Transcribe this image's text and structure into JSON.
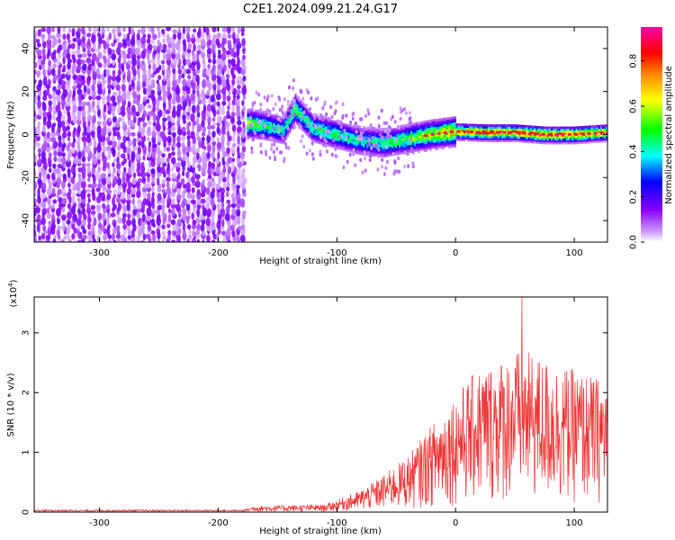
{
  "title": "C2E1.2024.099.21.24.G17",
  "chart_data": [
    {
      "type": "heatmap",
      "name": "spectrogram",
      "xlabel": "Height of straight line (km)",
      "ylabel": "Frequency (Hz)",
      "xlim": [
        -355,
        128
      ],
      "ylim": [
        -50,
        50
      ],
      "xticks": [
        -300,
        -200,
        -100,
        0,
        100
      ],
      "yticks": [
        -40,
        -20,
        0,
        20,
        40
      ],
      "colorbar": {
        "label": "Normalized spectral amplitude",
        "range": [
          0,
          0.95
        ],
        "ticks": [
          0.0,
          0.2,
          0.4,
          0.6,
          0.8
        ],
        "colors": [
          "#ffffff",
          "#8800ff",
          "#0000ff",
          "#00ffff",
          "#00ff00",
          "#ffff00",
          "#ff8800",
          "#ff0000",
          "#ff00aa"
        ]
      },
      "noise_region_x": [
        -355,
        -177
      ],
      "signal_track": [
        {
          "x": -175,
          "f": 5,
          "a": 0.55
        },
        {
          "x": -160,
          "f": 4,
          "a": 0.45
        },
        {
          "x": -145,
          "f": 2,
          "a": 0.4
        },
        {
          "x": -135,
          "f": 12,
          "a": 0.5
        },
        {
          "x": -120,
          "f": 3,
          "a": 0.45
        },
        {
          "x": -100,
          "f": 0,
          "a": 0.45
        },
        {
          "x": -80,
          "f": -3,
          "a": 0.4
        },
        {
          "x": -60,
          "f": -4,
          "a": 0.45
        },
        {
          "x": -40,
          "f": -2,
          "a": 0.5
        },
        {
          "x": -20,
          "f": 0,
          "a": 0.6
        },
        {
          "x": 0,
          "f": 1.5,
          "a": 0.7
        },
        {
          "x": 25,
          "f": 1,
          "a": 0.75
        },
        {
          "x": 50,
          "f": 1,
          "a": 0.75
        },
        {
          "x": 75,
          "f": 0,
          "a": 0.75
        },
        {
          "x": 100,
          "f": 0,
          "a": 0.75
        },
        {
          "x": 128,
          "f": 1,
          "a": 0.7
        }
      ]
    },
    {
      "type": "line",
      "name": "snr",
      "xlabel": "Height of straight line (km)",
      "ylabel": "SNR (10 * v/v)",
      "y_multiplier": "(x10",
      "y_multiplier_exp": "4",
      "xlim": [
        -355,
        128
      ],
      "ylim": [
        0,
        3.6
      ],
      "xticks": [
        -300,
        -200,
        -100,
        0,
        100
      ],
      "yticks": [
        0,
        1,
        2,
        3
      ],
      "color": "#ee3333",
      "envelope": [
        {
          "x": -355,
          "y": 0.03
        },
        {
          "x": -180,
          "y": 0.03
        },
        {
          "x": -170,
          "y": 0.1
        },
        {
          "x": -110,
          "y": 0.12
        },
        {
          "x": -80,
          "y": 0.35
        },
        {
          "x": -60,
          "y": 0.6
        },
        {
          "x": -40,
          "y": 0.9
        },
        {
          "x": -20,
          "y": 1.4
        },
        {
          "x": 0,
          "y": 1.9
        },
        {
          "x": 20,
          "y": 2.3
        },
        {
          "x": 55,
          "y": 2.6
        },
        {
          "x": 80,
          "y": 2.4
        },
        {
          "x": 110,
          "y": 2.2
        },
        {
          "x": 128,
          "y": 2.1
        }
      ],
      "peak": {
        "x": 56,
        "y": 3.6
      }
    }
  ]
}
